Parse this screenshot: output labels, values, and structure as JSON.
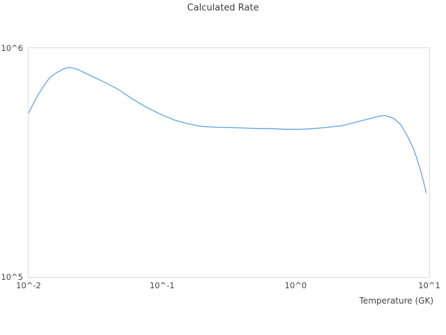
{
  "chart_data": {
    "type": "line",
    "title": "Calculated Rate",
    "xlabel": "Temperature (GK)",
    "ylabel": "",
    "x_scale": "log",
    "y_scale": "log",
    "xlim": [
      0.01,
      10
    ],
    "ylim": [
      100000,
      1000000
    ],
    "x_ticks": [
      {
        "value": 0.01,
        "label": "10^-2"
      },
      {
        "value": 0.1,
        "label": "10^-1"
      },
      {
        "value": 1,
        "label": "10^0"
      },
      {
        "value": 10,
        "label": "10^1"
      }
    ],
    "y_ticks": [
      {
        "value": 100000,
        "label": "10^5"
      },
      {
        "value": 1000000,
        "label": "10^6"
      }
    ],
    "grid": false,
    "legend": "none",
    "line_color": "#61a2e3",
    "line_width": 1.3,
    "series": [
      {
        "name": "calculated-rate",
        "points": [
          [
            0.01,
            520000
          ],
          [
            0.0113,
            600000
          ],
          [
            0.0127,
            670000
          ],
          [
            0.0143,
            740000
          ],
          [
            0.0161,
            780000
          ],
          [
            0.0182,
            810000
          ],
          [
            0.02,
            825000
          ],
          [
            0.023,
            810000
          ],
          [
            0.029,
            760000
          ],
          [
            0.037,
            710000
          ],
          [
            0.047,
            660000
          ],
          [
            0.06,
            600000
          ],
          [
            0.077,
            550000
          ],
          [
            0.097,
            515000
          ],
          [
            0.124,
            485000
          ],
          [
            0.157,
            467000
          ],
          [
            0.2,
            455000
          ],
          [
            0.254,
            451000
          ],
          [
            0.322,
            450000
          ],
          [
            0.41,
            448000
          ],
          [
            0.52,
            445000
          ],
          [
            0.66,
            445000
          ],
          [
            0.84,
            442000
          ],
          [
            1.07,
            442000
          ],
          [
            1.36,
            445000
          ],
          [
            1.73,
            451000
          ],
          [
            2.2,
            458000
          ],
          [
            2.8,
            474000
          ],
          [
            3.55,
            491000
          ],
          [
            4.25,
            505000
          ],
          [
            4.7,
            508000
          ],
          [
            5.4,
            494000
          ],
          [
            6.1,
            464000
          ],
          [
            6.8,
            418000
          ],
          [
            7.7,
            359000
          ],
          [
            8.7,
            287000
          ],
          [
            9.5,
            233000
          ]
        ]
      }
    ]
  }
}
